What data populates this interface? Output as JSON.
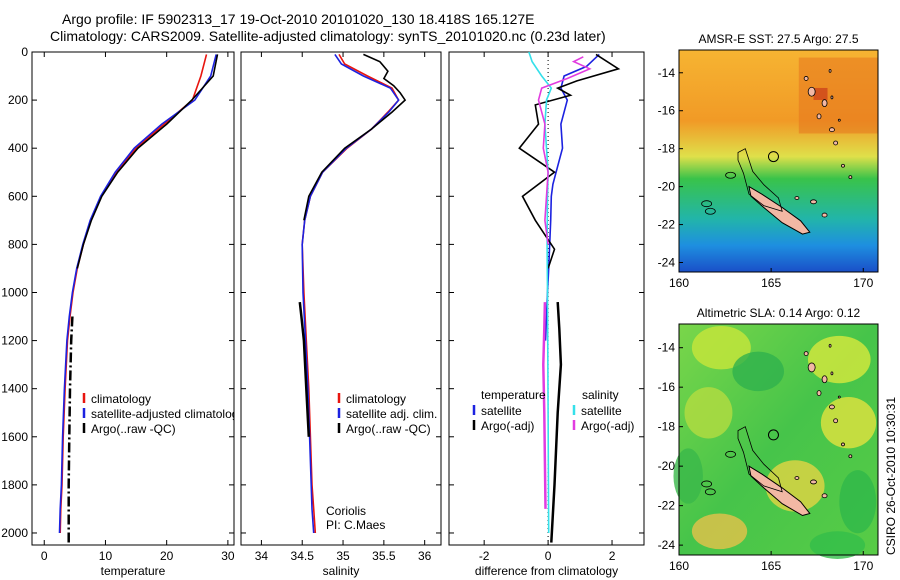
{
  "title_line1": "Argo profile: IF 5902313_17 19-Oct-2010 20101020_130 18.418S 165.127E",
  "title_line2": "Climatology: CARS2009. Satellite-adjusted climatology: synTS_20101020.nc (0.23d later)",
  "side_stamp": "CSIRO 26-Oct-2010 10:30:31",
  "colors": {
    "climatology": "#e8150f",
    "satellite": "#1c22e0",
    "argo": "#000000",
    "sat_salinity": "#35e0ea",
    "argo_salinity": "#e23ce0"
  },
  "chart_data": [
    {
      "type": "line",
      "xlabel": "temperature",
      "xlim": [
        -2,
        31
      ],
      "ylim": [
        2050,
        0
      ],
      "xticks": [
        0,
        10,
        20,
        30
      ],
      "yticks": [
        0,
        200,
        400,
        600,
        800,
        1000,
        1200,
        1400,
        1600,
        1800,
        2000
      ],
      "series": [
        {
          "name": "climatology",
          "x": [
            26.5,
            25.6,
            24.2,
            19.6,
            15.0,
            11.8,
            9.3,
            7.6,
            6.4,
            5.4,
            4.7,
            4.2,
            3.8,
            3.4,
            3.1,
            2.9,
            2.7,
            2.6
          ],
          "y": [
            10,
            100,
            200,
            300,
            400,
            500,
            600,
            700,
            800,
            900,
            1000,
            1100,
            1200,
            1400,
            1600,
            1800,
            1900,
            2000
          ]
        },
        {
          "name": "satellite-adjusted climatology",
          "x": [
            28.1,
            27.2,
            24.6,
            19.2,
            14.7,
            11.6,
            9.2,
            7.5,
            6.3,
            5.3,
            4.6,
            4.1,
            3.7,
            3.3,
            3.0,
            2.8,
            2.6,
            2.5
          ],
          "y": [
            10,
            100,
            200,
            300,
            400,
            500,
            600,
            700,
            800,
            900,
            1000,
            1100,
            1200,
            1400,
            1600,
            1800,
            1900,
            2000
          ]
        },
        {
          "name": "Argo(..raw -QC)",
          "x": [
            28.3,
            27.6,
            24.1,
            20.0,
            15.3,
            12.0,
            9.4,
            7.7,
            6.4,
            5.4
          ],
          "y": [
            10,
            100,
            200,
            300,
            400,
            500,
            600,
            700,
            800,
            900
          ]
        },
        {
          "name": "Argo deep",
          "x": [
            4.6,
            4.4,
            4.2,
            4.1,
            4.0,
            4.0,
            4.0
          ],
          "y": [
            1100,
            1200,
            1400,
            1600,
            1800,
            1900,
            2040
          ]
        }
      ],
      "legend": {
        "placement": "lower-right",
        "entries": [
          "climatology",
          "satellite-adjusted climatology",
          "Argo(..raw -QC)"
        ]
      }
    },
    {
      "type": "line",
      "xlabel": "salinity",
      "xlim": [
        33.75,
        36.2
      ],
      "ylim": [
        2050,
        0
      ],
      "xticks": [
        34,
        34.5,
        35,
        35.5,
        36
      ],
      "series": [
        {
          "name": "climatology",
          "x": [
            34.95,
            35.02,
            35.3,
            35.6,
            35.68,
            35.55,
            35.35,
            35.05,
            34.75,
            34.6,
            34.53,
            34.5,
            34.52,
            34.55,
            34.58,
            34.6,
            34.62,
            34.64,
            34.66
          ],
          "y": [
            10,
            50,
            100,
            150,
            200,
            250,
            320,
            400,
            500,
            600,
            700,
            800,
            1000,
            1200,
            1400,
            1600,
            1800,
            1900,
            2000
          ]
        },
        {
          "name": "satellite adj. clim.",
          "x": [
            34.9,
            34.98,
            35.25,
            35.58,
            35.68,
            35.56,
            35.35,
            35.04,
            34.75,
            34.6,
            34.53,
            34.5,
            34.51,
            34.54,
            34.57,
            34.59,
            34.61,
            34.62,
            34.64
          ],
          "y": [
            10,
            50,
            100,
            150,
            200,
            250,
            320,
            400,
            500,
            600,
            700,
            800,
            1000,
            1200,
            1400,
            1600,
            1800,
            1900,
            2000
          ]
        },
        {
          "name": "Argo(..raw -QC)",
          "x": [
            35.25,
            35.45,
            35.55,
            35.5,
            35.62,
            35.7,
            35.76,
            35.6,
            35.35,
            35.02,
            34.74,
            34.58,
            34.52
          ],
          "y": [
            10,
            40,
            80,
            110,
            140,
            170,
            200,
            250,
            320,
            400,
            500,
            600,
            700
          ]
        },
        {
          "name": "Argo deep",
          "x": [
            34.47,
            34.49,
            34.52,
            34.55,
            34.58
          ],
          "y": [
            1040,
            1100,
            1200,
            1400,
            1600
          ]
        }
      ],
      "legend": {
        "placement": "lower-right",
        "entries": [
          "climatology",
          "satellite adj. clim.",
          "Argo(..raw -QC)"
        ]
      },
      "annotation": [
        "Coriolis",
        "PI: C.Maes"
      ]
    },
    {
      "type": "line",
      "xlabel": "difference from climatology",
      "xlim": [
        -3.1,
        3.0
      ],
      "ylim": [
        2050,
        0
      ],
      "xticks": [
        -2,
        0,
        2
      ],
      "series": [
        {
          "name": "temperature satellite",
          "x": [
            1.6,
            1.2,
            0.5,
            0.4,
            0.6,
            0.4,
            0.45,
            0.35,
            0.25,
            0.15,
            0.1,
            0.08,
            0.05,
            0.02,
            -0.02,
            -0.05,
            -0.08
          ],
          "y": [
            10,
            60,
            100,
            150,
            200,
            300,
            400,
            450,
            500,
            550,
            600,
            700,
            800,
            900,
            1000,
            1100,
            1200
          ]
        },
        {
          "name": "temperature Argo(-adj)",
          "x": [
            1.5,
            2.2,
            0.9,
            0.3,
            0.7,
            -0.4,
            -0.3,
            -0.9,
            0.2,
            -0.8,
            -0.4,
            -0.1,
            0.2,
            0.0
          ],
          "y": [
            10,
            70,
            120,
            150,
            180,
            220,
            300,
            400,
            500,
            600,
            700,
            760,
            820,
            900
          ]
        },
        {
          "name": "temperature Argo deep",
          "x": [
            0.3,
            0.35,
            0.4,
            0.3,
            0.2,
            0.1
          ],
          "y": [
            1040,
            1150,
            1300,
            1500,
            1800,
            2040
          ]
        },
        {
          "name": "salinity satellite",
          "x": [
            -0.6,
            -0.5,
            -0.2,
            0.1,
            -0.05,
            -0.1,
            -0.05,
            0.0,
            -0.02,
            -0.03,
            -0.02,
            0.0,
            0.02
          ],
          "y": [
            0,
            40,
            100,
            150,
            200,
            300,
            400,
            500,
            600,
            800,
            1000,
            1500,
            2000
          ]
        },
        {
          "name": "salinity Argo(-adj)",
          "x": [
            1.1,
            0.8,
            1.3,
            0.6,
            -0.2,
            -0.3,
            -0.1,
            -0.15,
            0.0,
            -0.05,
            -0.1,
            0.0
          ],
          "y": [
            20,
            40,
            70,
            110,
            150,
            200,
            300,
            400,
            500,
            600,
            700,
            800
          ]
        },
        {
          "name": "salinity Argo deep",
          "x": [
            -0.1,
            -0.12,
            -0.15,
            -0.12,
            -0.1,
            -0.08
          ],
          "y": [
            1040,
            1150,
            1300,
            1500,
            1700,
            1900
          ]
        }
      ],
      "legend_temperature": {
        "heading": "temperature",
        "entries": [
          "satellite",
          "Argo(-adj)"
        ]
      },
      "legend_salinity": {
        "heading": "salinity",
        "entries": [
          "satellite",
          "Argo(-adj)"
        ]
      }
    },
    {
      "type": "heatmap",
      "title": "AMSR-E SST: 27.5  Argo: 27.5",
      "xlim": [
        160,
        170.8
      ],
      "ylim": [
        -24.5,
        -12.8
      ],
      "xticks": [
        160,
        165,
        170
      ],
      "yticks": [
        -14,
        -16,
        -18,
        -20,
        -22,
        -24
      ],
      "marker": {
        "lon": 165.127,
        "lat": -18.418
      }
    },
    {
      "type": "heatmap",
      "title": "Altimetric SLA: 0.14  Argo: 0.12",
      "xlim": [
        160,
        170.8
      ],
      "ylim": [
        -24.5,
        -12.8
      ],
      "xticks": [
        160,
        165,
        170
      ],
      "yticks": [
        -14,
        -16,
        -18,
        -20,
        -22,
        -24
      ],
      "marker": {
        "lon": 165.127,
        "lat": -18.418
      }
    }
  ]
}
